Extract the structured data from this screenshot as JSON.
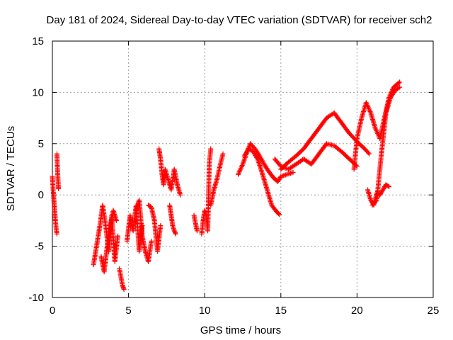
{
  "chart_data": {
    "type": "scatter",
    "title": "Day 181 of 2024, Sidereal Day-to-day VTEC variation (SDTVAR) for receiver sch2",
    "xlabel": "GPS time / hours",
    "ylabel": "SDTVAR / TECUs",
    "xlim": [
      0,
      25
    ],
    "ylim": [
      -10,
      15
    ],
    "xticks": [
      0,
      5,
      10,
      15,
      20,
      25
    ],
    "yticks": [
      -10,
      -5,
      0,
      5,
      10,
      15
    ],
    "xtick_labels": [
      "0",
      "5",
      "10",
      "15",
      "20",
      "25"
    ],
    "ytick_labels": [
      "-10",
      "-5",
      "0",
      "5",
      "10",
      "15"
    ],
    "grid": true,
    "marker": "+",
    "series": [
      {
        "name": "sch2",
        "color": "#ff0000",
        "segments": [
          {
            "x": [
              0.0,
              0.05,
              0.1,
              0.15,
              0.2,
              0.25,
              0.3
            ],
            "y": [
              1.8,
              0.5,
              -0.5,
              -1.5,
              -2.5,
              -3.3,
              -3.8
            ]
          },
          {
            "x": [
              0.3,
              0.32,
              0.35,
              0.38,
              0.4
            ],
            "y": [
              4.0,
              3.0,
              2.0,
              1.2,
              0.6
            ]
          },
          {
            "x": [
              2.7,
              2.9,
              3.1,
              3.3,
              3.5,
              3.7,
              3.9,
              4.1,
              4.3
            ],
            "y": [
              -6.8,
              -5.0,
              -3.2,
              -1.0,
              -3.0,
              -5.5,
              -2.0,
              -6.5,
              -4.0
            ]
          },
          {
            "x": [
              3.2,
              3.4,
              3.6,
              3.8,
              4.0,
              4.2
            ],
            "y": [
              -6.0,
              -7.5,
              -5.0,
              -3.0,
              -1.5,
              -2.5
            ]
          },
          {
            "x": [
              4.4,
              4.5,
              4.6,
              4.7
            ],
            "y": [
              -7.2,
              -8.0,
              -8.8,
              -9.2
            ]
          },
          {
            "x": [
              4.9,
              5.1,
              5.3,
              5.5,
              5.7,
              5.9
            ],
            "y": [
              -4.5,
              -2.0,
              -3.5,
              -1.0,
              -5.5,
              -3.0
            ]
          },
          {
            "x": [
              5.5,
              5.7,
              5.9,
              6.1,
              6.3,
              6.5
            ],
            "y": [
              -1.5,
              -0.5,
              -4.0,
              -5.5,
              -6.5,
              -4.5
            ]
          },
          {
            "x": [
              6.3,
              6.5,
              6.7,
              6.9,
              7.1
            ],
            "y": [
              -1.0,
              -1.2,
              -2.5,
              -5.5,
              -3.0
            ]
          },
          {
            "x": [
              7.0,
              7.1,
              7.2,
              7.3,
              7.4,
              7.6,
              7.8,
              8.0,
              8.2,
              8.4
            ],
            "y": [
              4.5,
              3.5,
              2.0,
              1.0,
              2.5,
              1.5,
              0.5,
              2.5,
              1.0,
              0.0
            ]
          },
          {
            "x": [
              7.7,
              7.8,
              7.9,
              8.0,
              8.1
            ],
            "y": [
              -1.0,
              -2.0,
              -3.0,
              -3.5,
              -3.8
            ]
          },
          {
            "x": [
              9.3,
              9.4,
              9.5
            ],
            "y": [
              -2.0,
              -2.8,
              -3.5
            ]
          },
          {
            "x": [
              9.8,
              9.9,
              10.0,
              10.1,
              10.2,
              10.3,
              10.4
            ],
            "y": [
              -3.8,
              -2.5,
              -1.5,
              -2.0,
              -3.5,
              3.0,
              4.5
            ]
          },
          {
            "x": [
              10.4,
              10.6,
              10.8,
              11.0,
              11.2
            ],
            "y": [
              -1.0,
              0.5,
              1.5,
              2.8,
              4.0
            ]
          },
          {
            "x": [
              12.2,
              12.5,
              12.8,
              13.0,
              13.3,
              13.6,
              13.9,
              14.2,
              14.5,
              14.8,
              15.0,
              15.4,
              15.8
            ],
            "y": [
              2.0,
              3.0,
              4.3,
              5.0,
              4.5,
              3.8,
              3.0,
              2.3,
              1.7,
              1.3,
              1.8,
              2.0,
              2.2
            ]
          },
          {
            "x": [
              12.6,
              12.9,
              13.2,
              13.5,
              13.8,
              14.1,
              14.4,
              14.7,
              14.9
            ],
            "y": [
              3.8,
              4.5,
              4.2,
              3.4,
              2.0,
              0.5,
              -1.0,
              -1.6,
              -1.9
            ]
          },
          {
            "x": [
              15.0,
              15.5,
              16.0,
              16.5,
              17.0,
              17.5,
              18.0,
              18.5,
              19.0,
              19.5,
              20.0,
              20.5,
              20.8
            ],
            "y": [
              2.5,
              3.2,
              3.8,
              4.5,
              5.5,
              6.5,
              7.5,
              8.0,
              7.0,
              6.0,
              5.2,
              4.5,
              4.0
            ]
          },
          {
            "x": [
              14.6,
              15.0,
              15.5,
              16.0,
              16.5,
              17.0,
              17.5,
              18.0,
              18.5,
              19.0,
              19.5,
              20.0
            ],
            "y": [
              3.5,
              2.8,
              2.5,
              3.0,
              3.5,
              3.0,
              4.0,
              5.0,
              4.8,
              4.2,
              3.5,
              2.8
            ]
          },
          {
            "x": [
              19.8,
              20.0,
              20.3,
              20.6,
              20.9,
              21.2,
              21.5,
              21.8,
              22.1,
              22.4,
              22.8
            ],
            "y": [
              2.5,
              5.5,
              7.5,
              9.0,
              8.0,
              6.5,
              5.5,
              7.5,
              9.5,
              10.5,
              11.0
            ]
          },
          {
            "x": [
              20.7,
              20.9,
              21.1,
              21.3,
              21.5,
              21.7,
              21.9,
              22.1
            ],
            "y": [
              0.5,
              -0.5,
              -1.0,
              0.2,
              0.0,
              0.5,
              1.0,
              0.8
            ]
          },
          {
            "x": [
              21.0,
              21.3,
              21.6,
              21.9,
              22.2,
              22.5,
              22.8
            ],
            "y": [
              -1.0,
              -0.5,
              4.0,
              8.0,
              9.5,
              10.2,
              10.5
            ]
          }
        ]
      }
    ]
  }
}
